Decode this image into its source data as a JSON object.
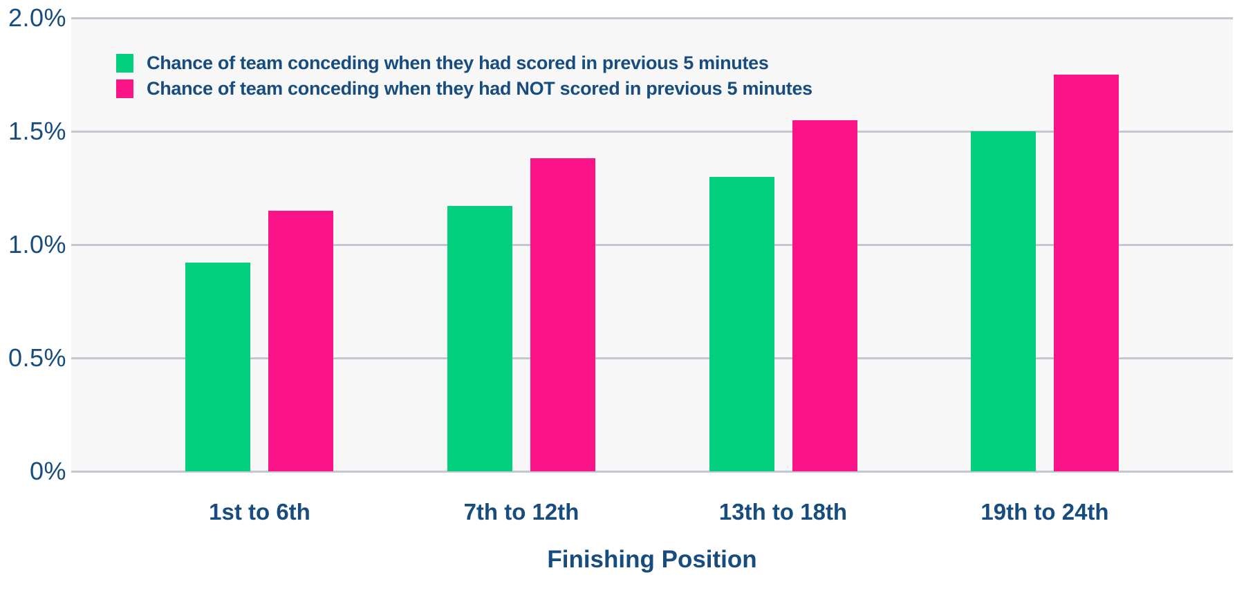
{
  "colors": {
    "scored_green": "#03d07e",
    "not_scored_pink": "#fa1487",
    "axis_text_navy": "#164c7e",
    "gridline_gray": "#c2c7d1",
    "plot_background": "#f7f7f7",
    "page_background": "#ffffff"
  },
  "chart_data": {
    "type": "bar",
    "title": "",
    "xlabel": "Finishing Position",
    "ylabel": "",
    "categories": [
      "1st to 6th",
      "7th to 12th",
      "13th to 18th",
      "19th to 24th"
    ],
    "series": [
      {
        "name": "Chance of team conceding when they had scored in previous 5 minutes",
        "color": "#03d07e",
        "values": [
          0.92,
          1.17,
          1.3,
          1.5
        ]
      },
      {
        "name": "Chance of team conceding when they had NOT scored in previous 5 minutes",
        "color": "#fa1487",
        "values": [
          1.15,
          1.38,
          1.55,
          1.75
        ]
      }
    ],
    "y_ticks": [
      "2.0%",
      "1.5%",
      "1.0%",
      "0.5%",
      "0%"
    ],
    "ylim": [
      0,
      2.0
    ],
    "grid": true,
    "legend_position": "top-left-inside",
    "units": "percent"
  }
}
